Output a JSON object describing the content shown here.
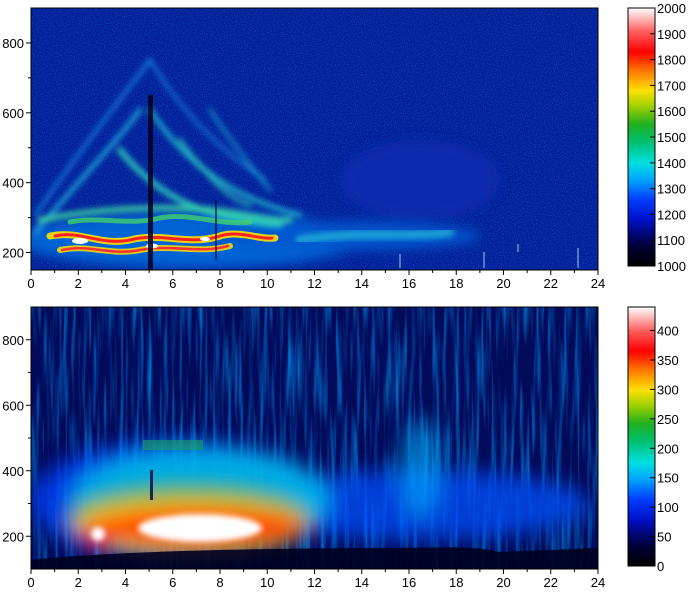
{
  "chart_data": [
    {
      "type": "heatmap",
      "title": "",
      "xlabel": "",
      "ylabel": "",
      "x_ticks": [
        "0",
        "2",
        "4",
        "6",
        "8",
        "10",
        "12",
        "14",
        "16",
        "18",
        "20",
        "22",
        "24"
      ],
      "y_ticks": [
        "200",
        "400",
        "600",
        "800"
      ],
      "xlim": [
        0,
        24
      ],
      "ylim": [
        150,
        900
      ],
      "colorbar": {
        "min": 1000,
        "max": 2000,
        "ticks": [
          "1000",
          "1100",
          "1200",
          "1300",
          "1400",
          "1500",
          "1600",
          "1700",
          "1800",
          "1900",
          "2000"
        ]
      },
      "features": [
        {
          "desc": "banded arcs",
          "x_range": [
            0.5,
            11.5
          ],
          "y_range": [
            190,
            520
          ],
          "peak_value": 1850
        },
        {
          "desc": "mid band",
          "x_range": [
            12,
            18
          ],
          "y_range": [
            240,
            310
          ],
          "peak_value": 1250
        },
        {
          "desc": "vertical dark gap",
          "x": 5.1,
          "value": 1000
        }
      ]
    },
    {
      "type": "heatmap",
      "title": "",
      "xlabel": "",
      "ylabel": "",
      "x_ticks": [
        "0",
        "2",
        "4",
        "6",
        "8",
        "10",
        "12",
        "14",
        "16",
        "18",
        "20",
        "22",
        "24"
      ],
      "y_ticks": [
        "200",
        "400",
        "600",
        "800"
      ],
      "xlim": [
        0,
        24
      ],
      "ylim": [
        100,
        900
      ],
      "colorbar": {
        "min": 0,
        "max": 440,
        "ticks": [
          "0",
          "50",
          "100",
          "150",
          "200",
          "250",
          "300",
          "350",
          "400"
        ]
      },
      "features": [
        {
          "desc": "hot core",
          "x_range": [
            4.5,
            10
          ],
          "y_range": [
            170,
            300
          ],
          "peak_value": 440
        },
        {
          "desc": "hot spot",
          "x_range": [
            2,
            3.3
          ],
          "y_range": [
            180,
            260
          ],
          "peak_value": 380
        },
        {
          "desc": "warm envelope",
          "x_range": [
            1,
            11.5
          ],
          "y_range": [
            140,
            480
          ],
          "value": 200
        },
        {
          "desc": "column",
          "x_range": [
            15.6,
            17.4
          ],
          "y_range": [
            200,
            500
          ],
          "value": 140
        },
        {
          "desc": "dark floor",
          "x_range": [
            15,
            24
          ],
          "y_range": [
            100,
            180
          ],
          "value": 20
        }
      ]
    }
  ]
}
